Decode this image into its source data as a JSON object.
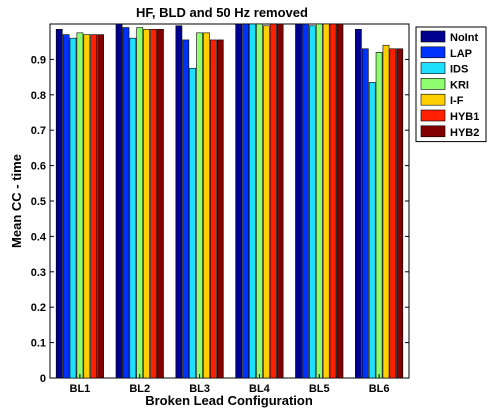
{
  "chart_data": {
    "type": "bar",
    "title": "HF, BLD and 50 Hz removed",
    "xlabel": "Broken Lead Configuration",
    "ylabel": "Mean CC - time",
    "ylim": [
      0,
      1
    ],
    "yticks": [
      "0",
      "0.1",
      "0.2",
      "0.3",
      "0.4",
      "0.5",
      "0.6",
      "0.7",
      "0.8",
      "0.9"
    ],
    "grid": false,
    "legend_position": "outside-top-right",
    "categories": [
      "BL1",
      "BL2",
      "BL3",
      "BL4",
      "BL5",
      "BL6"
    ],
    "series": [
      {
        "name": "NoInt",
        "color": "#00008F",
        "values": [
          0.985,
          1.0,
          0.995,
          1.0,
          1.0,
          0.985
        ]
      },
      {
        "name": "LAP",
        "color": "#0032FF",
        "values": [
          0.97,
          0.99,
          0.955,
          1.0,
          1.0,
          0.93
        ]
      },
      {
        "name": "IDS",
        "color": "#1FDFFF",
        "values": [
          0.96,
          0.96,
          0.875,
          1.0,
          0.995,
          0.835
        ]
      },
      {
        "name": "KRI",
        "color": "#8FFF70",
        "values": [
          0.975,
          0.99,
          0.975,
          1.0,
          1.0,
          0.92
        ]
      },
      {
        "name": "I-F",
        "color": "#FFCF00",
        "values": [
          0.97,
          0.985,
          0.975,
          0.995,
          1.0,
          0.94
        ]
      },
      {
        "name": "HYB1",
        "color": "#FF2000",
        "values": [
          0.97,
          0.985,
          0.955,
          1.0,
          1.0,
          0.93
        ]
      },
      {
        "name": "HYB2",
        "color": "#800000",
        "values": [
          0.97,
          0.985,
          0.955,
          1.0,
          1.0,
          0.93
        ]
      }
    ]
  }
}
